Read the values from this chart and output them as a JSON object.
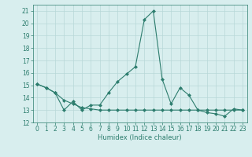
{
  "xlabel": "Humidex (Indice chaleur)",
  "ylabel": "",
  "xlim": [
    -0.5,
    23.5
  ],
  "ylim": [
    12,
    21.5
  ],
  "yticks": [
    12,
    13,
    14,
    15,
    16,
    17,
    18,
    19,
    20,
    21
  ],
  "xticks": [
    0,
    1,
    2,
    3,
    4,
    5,
    6,
    7,
    8,
    9,
    10,
    11,
    12,
    13,
    14,
    15,
    16,
    17,
    18,
    19,
    20,
    21,
    22,
    23
  ],
  "line1_x": [
    0,
    1,
    2,
    3,
    4,
    5,
    6,
    7,
    8,
    9,
    10,
    11,
    12,
    13,
    14,
    15,
    16,
    17,
    18,
    19,
    20,
    21,
    22,
    23
  ],
  "line1_y": [
    15.1,
    14.8,
    14.4,
    13.0,
    13.7,
    13.0,
    13.4,
    13.4,
    14.4,
    15.3,
    15.9,
    16.5,
    20.3,
    21.0,
    15.5,
    13.5,
    14.8,
    14.2,
    13.0,
    12.8,
    12.7,
    12.5,
    13.1,
    13.0
  ],
  "line2_x": [
    0,
    1,
    2,
    3,
    4,
    5,
    6,
    7,
    8,
    9,
    10,
    11,
    12,
    13,
    14,
    15,
    16,
    17,
    18,
    19,
    20,
    21,
    22,
    23
  ],
  "line2_y": [
    15.1,
    14.8,
    14.4,
    13.8,
    13.5,
    13.2,
    13.1,
    13.0,
    13.0,
    13.0,
    13.0,
    13.0,
    13.0,
    13.0,
    13.0,
    13.0,
    13.0,
    13.0,
    13.0,
    13.0,
    13.0,
    13.0,
    13.0,
    13.0
  ],
  "line_color": "#2d7d6e",
  "bg_color": "#d8eeee",
  "grid_color": "#b8d8d8",
  "axis_fontsize": 6,
  "tick_fontsize": 5.5
}
